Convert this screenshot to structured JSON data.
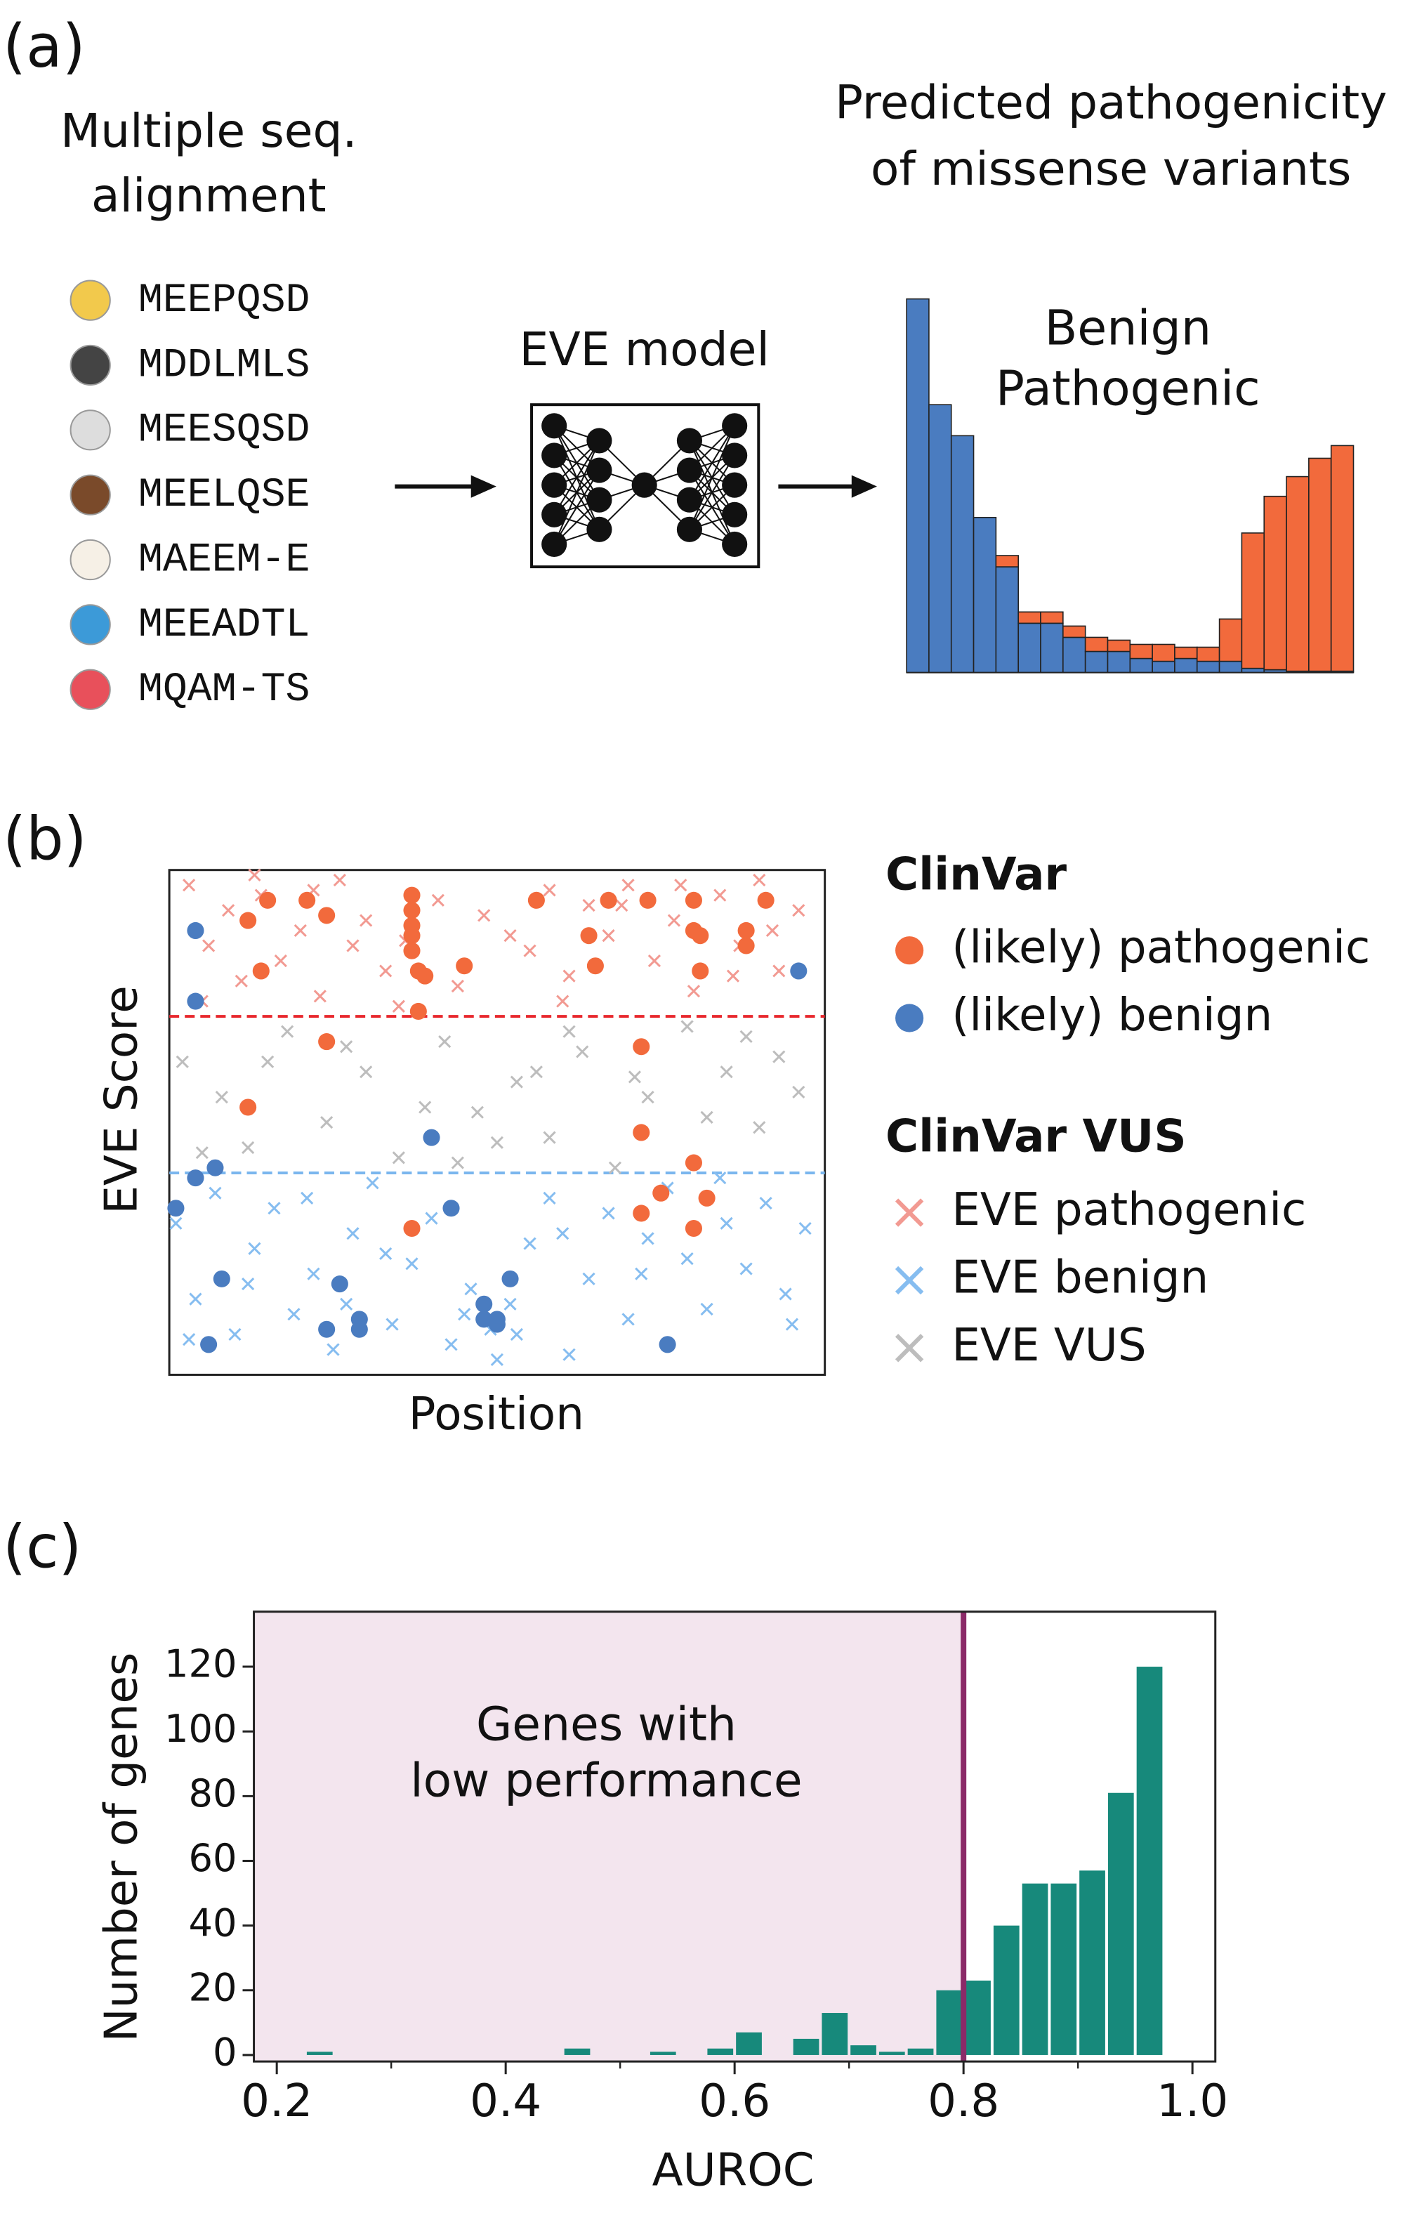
{
  "panel_labels": [
    "(a)",
    "(b)",
    "(c)"
  ],
  "alignment": {
    "title": [
      "Multiple seq.",
      "alignment"
    ],
    "sequences": [
      "MEEPQSD",
      "MDDLMLS",
      "MEESQSD",
      "MEELQSE",
      "MAEEM-E",
      "MEEADTL",
      "MQAM-TS"
    ]
  },
  "model": {
    "label": "EVE model"
  },
  "chart_data": [
    {
      "type": "bar",
      "stacked": true,
      "title": [
        "Predicted pathogenicity",
        "of missense variants"
      ],
      "categories": [
        null,
        null,
        null,
        null,
        null,
        null,
        null,
        null,
        null,
        null,
        null,
        null,
        null,
        null,
        null,
        null,
        null,
        null,
        null,
        null
      ],
      "series": [
        {
          "name": "Benign",
          "color": "#4a7cc0",
          "values": [
            265,
            190,
            168,
            110,
            75,
            35,
            35,
            25,
            15,
            15,
            10,
            8,
            10,
            8,
            8,
            3,
            2,
            1,
            1,
            1
          ]
        },
        {
          "name": "Pathogenic",
          "color": "#f26a3c",
          "values": [
            0,
            0,
            0,
            0,
            8,
            8,
            8,
            8,
            10,
            8,
            10,
            12,
            8,
            10,
            30,
            96,
            123,
            138,
            151,
            160
          ]
        }
      ]
    },
    {
      "type": "scatter",
      "ylabel": "EVE Score",
      "xlabel": "Position",
      "xlim": [
        0,
        1
      ],
      "ylim": [
        0,
        1
      ],
      "legend_titles": [
        "ClinVar",
        "ClinVar VUS"
      ],
      "hlines": [
        {
          "value": 0.71,
          "color": "#e8262b"
        },
        {
          "value": 0.4,
          "color": "#7ab6ee"
        }
      ],
      "series": [
        {
          "name": "(likely) pathogenic",
          "marker": "o",
          "color": "#f26a3c",
          "x": [
            0.15,
            0.12,
            0.21,
            0.24,
            0.14,
            0.37,
            0.37,
            0.37,
            0.37,
            0.37,
            0.38,
            0.39,
            0.38,
            0.45,
            0.56,
            0.64,
            0.65,
            0.67,
            0.73,
            0.8,
            0.8,
            0.81,
            0.88,
            0.88,
            0.91,
            0.81,
            0.24,
            0.12,
            0.72,
            0.72,
            0.8,
            0.82,
            0.75,
            0.72,
            0.8,
            0.37
          ],
          "values": [
            0.94,
            0.9,
            0.94,
            0.91,
            0.8,
            0.95,
            0.92,
            0.89,
            0.87,
            0.84,
            0.8,
            0.79,
            0.72,
            0.81,
            0.94,
            0.87,
            0.81,
            0.94,
            0.94,
            0.94,
            0.88,
            0.87,
            0.88,
            0.85,
            0.94,
            0.8,
            0.66,
            0.53,
            0.65,
            0.48,
            0.42,
            0.35,
            0.36,
            0.32,
            0.29,
            0.29
          ]
        },
        {
          "name": "(likely) benign",
          "marker": "o",
          "color": "#4a7cc0",
          "x": [
            0.04,
            0.04,
            0.96,
            0.4,
            0.07,
            0.04,
            0.01,
            0.43,
            0.08,
            0.26,
            0.29,
            0.29,
            0.24,
            0.06,
            0.48,
            0.52,
            0.5,
            0.48,
            0.5,
            0.76
          ],
          "values": [
            0.88,
            0.74,
            0.8,
            0.47,
            0.41,
            0.39,
            0.33,
            0.33,
            0.19,
            0.18,
            0.11,
            0.09,
            0.09,
            0.06,
            0.14,
            0.19,
            0.11,
            0.11,
            0.1,
            0.06
          ]
        },
        {
          "name": "EVE pathogenic",
          "marker": "x",
          "color": "#f29a92",
          "x": [
            0.03,
            0.06,
            0.09,
            0.11,
            0.14,
            0.17,
            0.2,
            0.23,
            0.26,
            0.3,
            0.33,
            0.36,
            0.41,
            0.44,
            0.48,
            0.55,
            0.58,
            0.61,
            0.64,
            0.67,
            0.7,
            0.74,
            0.77,
            0.8,
            0.84,
            0.87,
            0.9,
            0.93,
            0.96,
            0.05,
            0.13,
            0.22,
            0.35,
            0.52,
            0.6,
            0.69,
            0.78,
            0.86,
            0.92,
            0.28
          ],
          "values": [
            0.97,
            0.85,
            0.92,
            0.78,
            0.95,
            0.82,
            0.88,
            0.75,
            0.98,
            0.9,
            0.8,
            0.86,
            0.94,
            0.77,
            0.91,
            0.84,
            0.96,
            0.79,
            0.93,
            0.87,
            0.97,
            0.82,
            0.9,
            0.76,
            0.95,
            0.85,
            0.98,
            0.8,
            0.92,
            0.74,
            0.99,
            0.96,
            0.73,
            0.87,
            0.74,
            0.93,
            0.97,
            0.79,
            0.88,
            0.85
          ]
        },
        {
          "name": "EVE benign",
          "marker": "x",
          "color": "#86bdf0",
          "x": [
            0.01,
            0.04,
            0.07,
            0.1,
            0.13,
            0.16,
            0.19,
            0.22,
            0.25,
            0.28,
            0.31,
            0.34,
            0.37,
            0.4,
            0.43,
            0.46,
            0.49,
            0.52,
            0.55,
            0.58,
            0.61,
            0.64,
            0.67,
            0.7,
            0.73,
            0.76,
            0.79,
            0.82,
            0.85,
            0.88,
            0.91,
            0.94,
            0.97,
            0.03,
            0.12,
            0.21,
            0.33,
            0.45,
            0.5,
            0.6,
            0.72,
            0.84,
            0.95,
            0.27,
            0.53
          ],
          "values": [
            0.3,
            0.15,
            0.36,
            0.08,
            0.25,
            0.33,
            0.12,
            0.2,
            0.05,
            0.28,
            0.38,
            0.1,
            0.22,
            0.31,
            0.06,
            0.17,
            0.09,
            0.14,
            0.26,
            0.35,
            0.04,
            0.19,
            0.32,
            0.11,
            0.27,
            0.37,
            0.23,
            0.13,
            0.3,
            0.21,
            0.34,
            0.16,
            0.29,
            0.07,
            0.18,
            0.35,
            0.24,
            0.12,
            0.03,
            0.28,
            0.2,
            0.39,
            0.1,
            0.14,
            0.08
          ]
        },
        {
          "name": "EVE VUS",
          "marker": "x",
          "color": "#bdbdbd",
          "x": [
            0.02,
            0.08,
            0.12,
            0.18,
            0.24,
            0.3,
            0.35,
            0.42,
            0.47,
            0.53,
            0.58,
            0.63,
            0.68,
            0.73,
            0.79,
            0.85,
            0.9,
            0.96,
            0.05,
            0.15,
            0.27,
            0.39,
            0.5,
            0.61,
            0.71,
            0.82,
            0.93,
            0.44,
            0.56,
            0.88
          ],
          "values": [
            0.62,
            0.55,
            0.45,
            0.68,
            0.5,
            0.6,
            0.43,
            0.66,
            0.52,
            0.58,
            0.47,
            0.64,
            0.41,
            0.55,
            0.69,
            0.6,
            0.49,
            0.56,
            0.44,
            0.62,
            0.65,
            0.53,
            0.46,
            0.68,
            0.59,
            0.51,
            0.63,
            0.42,
            0.6,
            0.67
          ]
        }
      ]
    },
    {
      "type": "histogram",
      "xlabel": "AUROC",
      "ylabel": "Number of genes",
      "color": "#17897b",
      "bins": [
        0.2,
        0.225,
        0.25,
        0.275,
        0.3,
        0.325,
        0.35,
        0.375,
        0.4,
        0.425,
        0.45,
        0.475,
        0.5,
        0.525,
        0.55,
        0.575,
        0.6,
        0.625,
        0.65,
        0.675,
        0.7,
        0.725,
        0.75,
        0.775,
        0.8,
        0.825,
        0.85,
        0.875,
        0.9,
        0.925,
        0.95,
        0.975,
        1.0
      ],
      "values": [
        0,
        1,
        0,
        0,
        0,
        0,
        0,
        0,
        0,
        0,
        2,
        0,
        0,
        1,
        0,
        2,
        7,
        0,
        5,
        13,
        3,
        1,
        2,
        20,
        23,
        40,
        53,
        53,
        57,
        81,
        120,
        0
      ],
      "xlim": [
        0.18,
        1.02
      ],
      "ylim": [
        -2,
        137
      ],
      "xticks": [
        0.2,
        0.4,
        0.6,
        0.8,
        {
          "value": 1,
          "label": "1.0"
        }
      ],
      "xminorticks": [
        0.3,
        0.5,
        0.7,
        0.9
      ],
      "yticks": [
        0,
        20,
        40,
        60,
        80,
        100,
        120
      ],
      "threshold": 0.8,
      "threshold_color": "#8b2a68",
      "shade_color": "#f3e5ee",
      "annotation": [
        "Genes with",
        "low performance"
      ]
    }
  ]
}
